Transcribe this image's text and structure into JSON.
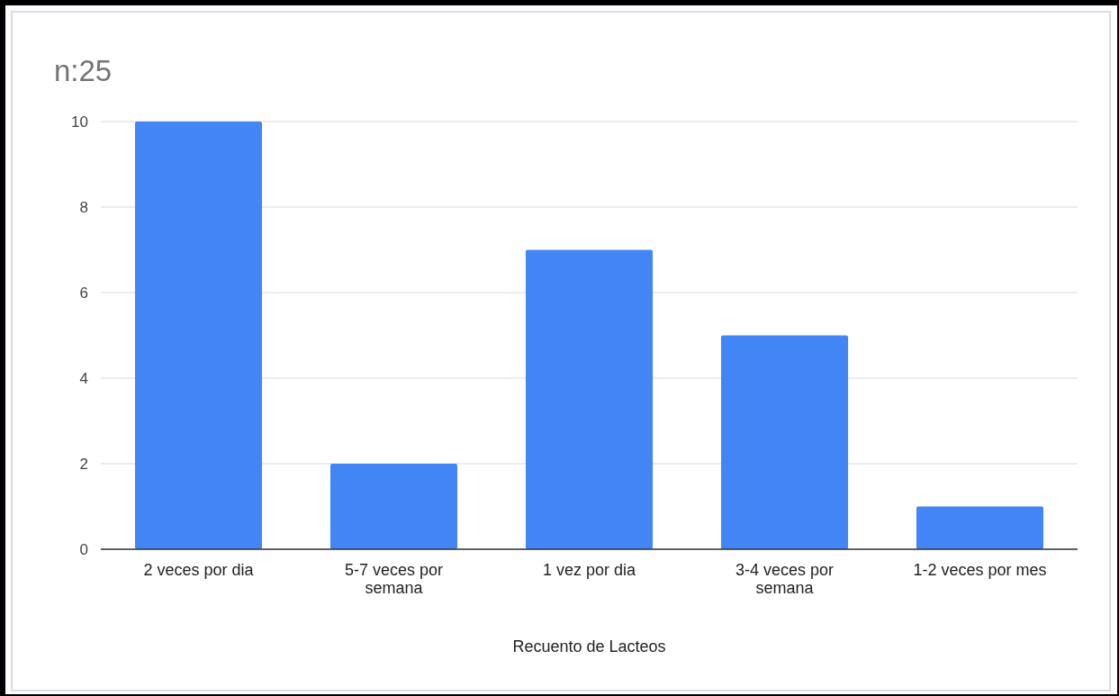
{
  "chart_data": {
    "type": "bar",
    "title": "n:25",
    "xlabel": "Recuento de Lacteos",
    "categories": [
      "2 veces por dia",
      "5-7 veces por semana",
      "1 vez por dia",
      "3-4 veces por semana",
      "1-2 veces por mes"
    ],
    "values": [
      10,
      2,
      7,
      5,
      1
    ],
    "color": "#4285f4",
    "ylim": [
      0,
      10
    ],
    "yticks": [
      0,
      2,
      4,
      6,
      8,
      10
    ],
    "grid": "y"
  }
}
